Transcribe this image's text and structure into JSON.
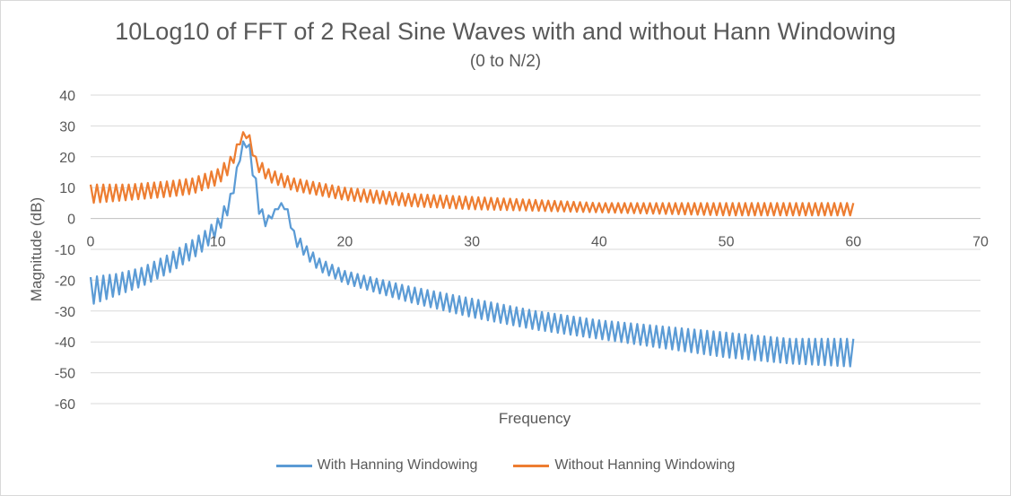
{
  "chart_data": {
    "type": "line",
    "title": "10Log10 of FFT of 2 Real Sine Waves with and without Hann Windowing",
    "subtitle": "(0 to N/2)",
    "xlabel": "Frequency",
    "ylabel": "Magnitude (dB)",
    "xlim": [
      0,
      70
    ],
    "ylim": [
      -60,
      40
    ],
    "xticks": [
      0,
      10,
      20,
      30,
      40,
      50,
      60,
      70
    ],
    "yticks": [
      40,
      30,
      20,
      10,
      0,
      -10,
      -20,
      -30,
      -40,
      -50,
      -60
    ],
    "grid": "horizontal",
    "legend_position": "bottom",
    "x_step": 0.25,
    "series": [
      {
        "name": "With Hanning Windowing",
        "color": "#5b9bd5",
        "envelope_points": [
          {
            "x": 0,
            "upper": -19,
            "lower": -28
          },
          {
            "x": 2,
            "upper": -18,
            "lower": -25
          },
          {
            "x": 4,
            "upper": -16,
            "lower": -22
          },
          {
            "x": 6,
            "upper": -12,
            "lower": -18
          },
          {
            "x": 8,
            "upper": -7,
            "lower": -13
          },
          {
            "x": 9,
            "upper": -4,
            "lower": -10
          },
          {
            "x": 10,
            "upper": 0,
            "lower": -5
          },
          {
            "x": 11,
            "upper": 8,
            "lower": 3
          },
          {
            "x": 12,
            "upper": 25,
            "lower": 24
          },
          {
            "x": 12.5,
            "upper": 24,
            "lower": 22
          },
          {
            "x": 13,
            "upper": 13,
            "lower": 6
          },
          {
            "x": 13.5,
            "upper": 3,
            "lower": -3
          },
          {
            "x": 14,
            "upper": 1,
            "lower": -2
          },
          {
            "x": 14.5,
            "upper": 3,
            "lower": 2
          },
          {
            "x": 15,
            "upper": 5,
            "lower": 4
          },
          {
            "x": 15.5,
            "upper": 3,
            "lower": 2
          },
          {
            "x": 16,
            "upper": -4,
            "lower": -8
          },
          {
            "x": 17,
            "upper": -9,
            "lower": -13
          },
          {
            "x": 18,
            "upper": -13,
            "lower": -17
          },
          {
            "x": 20,
            "upper": -17,
            "lower": -21
          },
          {
            "x": 25,
            "upper": -22,
            "lower": -27
          },
          {
            "x": 30,
            "upper": -26,
            "lower": -32
          },
          {
            "x": 35,
            "upper": -30,
            "lower": -36
          },
          {
            "x": 40,
            "upper": -33,
            "lower": -39
          },
          {
            "x": 45,
            "upper": -35,
            "lower": -42
          },
          {
            "x": 50,
            "upper": -37,
            "lower": -45
          },
          {
            "x": 55,
            "upper": -39,
            "lower": -47
          },
          {
            "x": 60,
            "upper": -39,
            "lower": -48
          }
        ]
      },
      {
        "name": "Without Hanning Windowing",
        "color": "#ed7d31",
        "envelope_points": [
          {
            "x": 0,
            "upper": 11,
            "lower": 5
          },
          {
            "x": 3,
            "upper": 11,
            "lower": 6
          },
          {
            "x": 6,
            "upper": 12,
            "lower": 7
          },
          {
            "x": 8,
            "upper": 13,
            "lower": 8
          },
          {
            "x": 10,
            "upper": 16,
            "lower": 11
          },
          {
            "x": 11,
            "upper": 20,
            "lower": 15
          },
          {
            "x": 12,
            "upper": 28,
            "lower": 27
          },
          {
            "x": 12.5,
            "upper": 27,
            "lower": 25
          },
          {
            "x": 13,
            "upper": 20,
            "lower": 16
          },
          {
            "x": 14,
            "upper": 16,
            "lower": 12
          },
          {
            "x": 16,
            "upper": 13,
            "lower": 9
          },
          {
            "x": 20,
            "upper": 10,
            "lower": 6
          },
          {
            "x": 25,
            "upper": 8,
            "lower": 4
          },
          {
            "x": 30,
            "upper": 7,
            "lower": 3
          },
          {
            "x": 40,
            "upper": 5,
            "lower": 2
          },
          {
            "x": 50,
            "upper": 5,
            "lower": 1
          },
          {
            "x": 60,
            "upper": 5,
            "lower": 1
          }
        ]
      }
    ]
  }
}
